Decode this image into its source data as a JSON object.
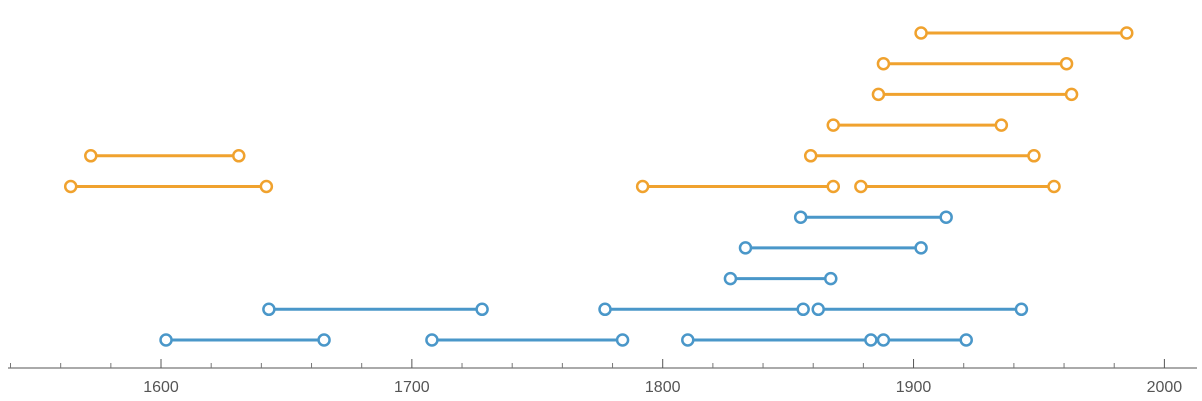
{
  "chart_data": {
    "type": "timeline",
    "xlim": [
      1539,
      2013
    ],
    "xticks": [
      1600,
      1700,
      1800,
      1900,
      2000
    ],
    "minor_xticks": [
      1540,
      1560,
      1580,
      1620,
      1640,
      1660,
      1680,
      1720,
      1740,
      1760,
      1780,
      1820,
      1840,
      1860,
      1880,
      1920,
      1940,
      1960,
      1980
    ],
    "series": [
      {
        "color": "#4a97c9",
        "intervals": [
          [
            1602,
            1665
          ],
          [
            1643,
            1728
          ],
          [
            1708,
            1784
          ],
          [
            1777,
            1856
          ],
          [
            1810,
            1883
          ],
          [
            1827,
            1867
          ],
          [
            1833,
            1903
          ],
          [
            1855,
            1913
          ],
          [
            1862,
            1943
          ],
          [
            1888,
            1921
          ]
        ]
      },
      {
        "color": "#f0a22e",
        "intervals": [
          [
            1564,
            1642
          ],
          [
            1572,
            1631
          ],
          [
            1792,
            1868
          ],
          [
            1859,
            1948
          ],
          [
            1868,
            1935
          ],
          [
            1879,
            1956
          ],
          [
            1886,
            1963
          ],
          [
            1888,
            1961
          ],
          [
            1903,
            1985
          ]
        ]
      }
    ]
  }
}
